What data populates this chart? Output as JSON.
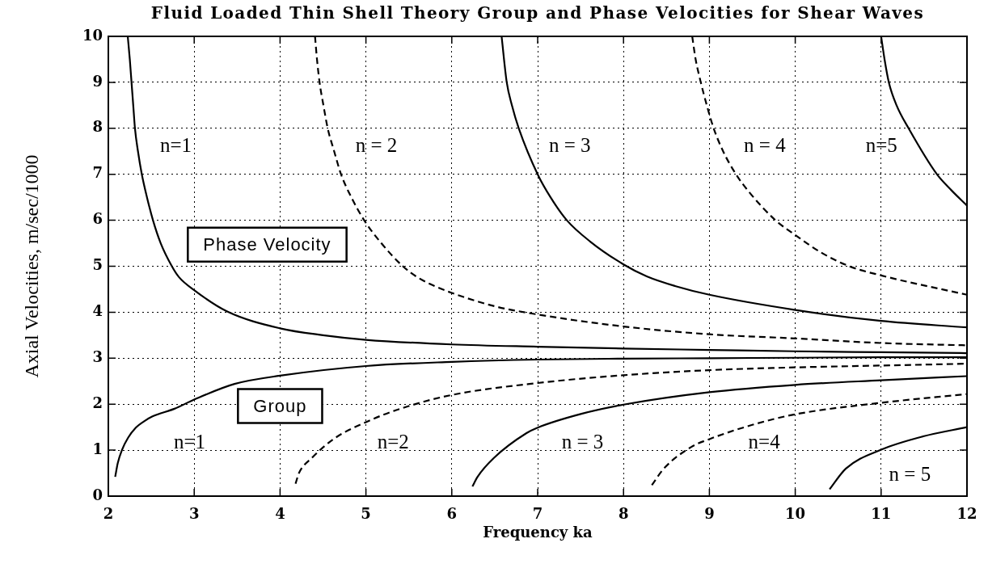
{
  "chart_data": {
    "type": "line",
    "title": "Fluid Loaded Thin Shell Theory Group and Phase Velocities for Shear Waves",
    "xlabel": "Frequency ka",
    "ylabel": "Axial Velocities, m/sec/1000",
    "xlim": [
      2,
      12
    ],
    "ylim": [
      0,
      10
    ],
    "xticks": [
      2,
      3,
      4,
      5,
      6,
      7,
      8,
      9,
      10,
      11,
      12
    ],
    "yticks": [
      0,
      1,
      2,
      3,
      4,
      5,
      6,
      7,
      8,
      9,
      10
    ],
    "grid": true,
    "series": [
      {
        "name": "n=1",
        "color": "#000000",
        "line_style": "solid",
        "x": [
          2.226,
          2.25,
          2.27,
          2.29,
          2.31,
          2.345,
          2.39,
          2.45,
          2.52,
          2.61,
          2.74,
          2.82,
          3,
          3.38,
          4,
          4.5,
          5,
          6,
          7,
          8,
          9,
          10,
          11,
          12
        ],
        "values": [
          10,
          9.5,
          9,
          8.5,
          8,
          7.5,
          7,
          6.5,
          6,
          5.5,
          5,
          4.77,
          4.48,
          4.02,
          3.65,
          3.5,
          3.4,
          3.3,
          3.25,
          3.21,
          3.18,
          3.15,
          3.13,
          3.11
        ]
      },
      {
        "name": "n=1",
        "color": "#000000",
        "line_style": "solid",
        "x": [
          2.08,
          2.11,
          2.16,
          2.23,
          2.32,
          2.41,
          2.51,
          2.77,
          3,
          3.47,
          4,
          5,
          6,
          7,
          8,
          9,
          10,
          11,
          12
        ],
        "values": [
          0.42,
          0.72,
          1.01,
          1.27,
          1.49,
          1.62,
          1.73,
          1.9,
          2.1,
          2.44,
          2.62,
          2.83,
          2.92,
          2.97,
          2.99,
          3.0,
          3.01,
          3.02,
          3.02
        ]
      },
      {
        "name": "n = 2",
        "color": "#000000",
        "line_style": "dashed",
        "x": [
          4.407,
          4.43,
          4.46,
          4.505,
          4.555,
          4.63,
          4.71,
          4.83,
          4.98,
          5.18,
          5.43,
          5.6,
          5.8,
          6,
          6.5,
          7,
          8,
          9,
          10,
          11,
          12
        ],
        "values": [
          10,
          9.5,
          9,
          8.5,
          8,
          7.5,
          7,
          6.5,
          6,
          5.5,
          5,
          4.76,
          4.57,
          4.42,
          4.13,
          3.95,
          3.69,
          3.52,
          3.43,
          3.33,
          3.28
        ]
      },
      {
        "name": "n=2",
        "color": "#000000",
        "line_style": "dashed",
        "x": [
          4.18,
          4.22,
          4.37,
          4.63,
          5,
          5.4,
          6,
          7,
          8,
          9,
          10,
          11,
          12
        ],
        "values": [
          0.27,
          0.5,
          0.83,
          1.25,
          1.61,
          1.9,
          2.2,
          2.46,
          2.63,
          2.74,
          2.8,
          2.84,
          2.88
        ]
      },
      {
        "name": "n = 3",
        "color": "#000000",
        "line_style": "solid",
        "x": [
          6.58,
          6.64,
          6.7,
          6.78,
          7,
          7.15,
          7.34,
          7.61,
          8,
          8.27,
          8.6,
          9,
          10,
          11,
          12
        ],
        "values": [
          10,
          9,
          8.5,
          8,
          7,
          6.5,
          6,
          5.54,
          5.04,
          4.78,
          4.57,
          4.38,
          4.05,
          3.81,
          3.67
        ]
      },
      {
        "name": "n = 3",
        "color": "#000000",
        "line_style": "solid",
        "x": [
          6.24,
          6.3,
          6.49,
          6.87,
          7,
          7.51,
          8,
          9,
          10,
          11,
          12
        ],
        "values": [
          0.21,
          0.42,
          0.83,
          1.37,
          1.49,
          1.79,
          1.99,
          2.26,
          2.42,
          2.52,
          2.61
        ]
      },
      {
        "name": "n = 4",
        "color": "#000000",
        "line_style": "dashed",
        "x": [
          8.8,
          8.84,
          8.9,
          8.97,
          9.05,
          9.16,
          9.31,
          9.46,
          9.77,
          10,
          10.3,
          10.63,
          11,
          12
        ],
        "values": [
          10,
          9.5,
          9,
          8.5,
          8,
          7.5,
          7,
          6.62,
          6,
          5.68,
          5.3,
          5,
          4.8,
          4.38
        ]
      },
      {
        "name": "n=4",
        "color": "#000000",
        "line_style": "dashed",
        "x": [
          8.33,
          8.47,
          8.79,
          9,
          9.5,
          10,
          11,
          12
        ],
        "values": [
          0.24,
          0.6,
          1.07,
          1.24,
          1.55,
          1.78,
          2.03,
          2.22
        ]
      },
      {
        "name": "n=5",
        "color": "#000000",
        "line_style": "solid",
        "x": [
          11.0,
          11.04,
          11.09,
          11.18,
          11.32,
          11.65,
          11.82,
          12
        ],
        "values": [
          10,
          9.5,
          9,
          8.5,
          8,
          7,
          6.65,
          6.32
        ]
      },
      {
        "name": "n = 5",
        "color": "#000000",
        "line_style": "solid",
        "x": [
          10.4,
          10.59,
          11,
          11.49,
          12
        ],
        "values": [
          0.15,
          0.6,
          1.01,
          1.3,
          1.5
        ]
      }
    ],
    "annotations": [
      "Phase Velocity",
      "Group"
    ]
  }
}
